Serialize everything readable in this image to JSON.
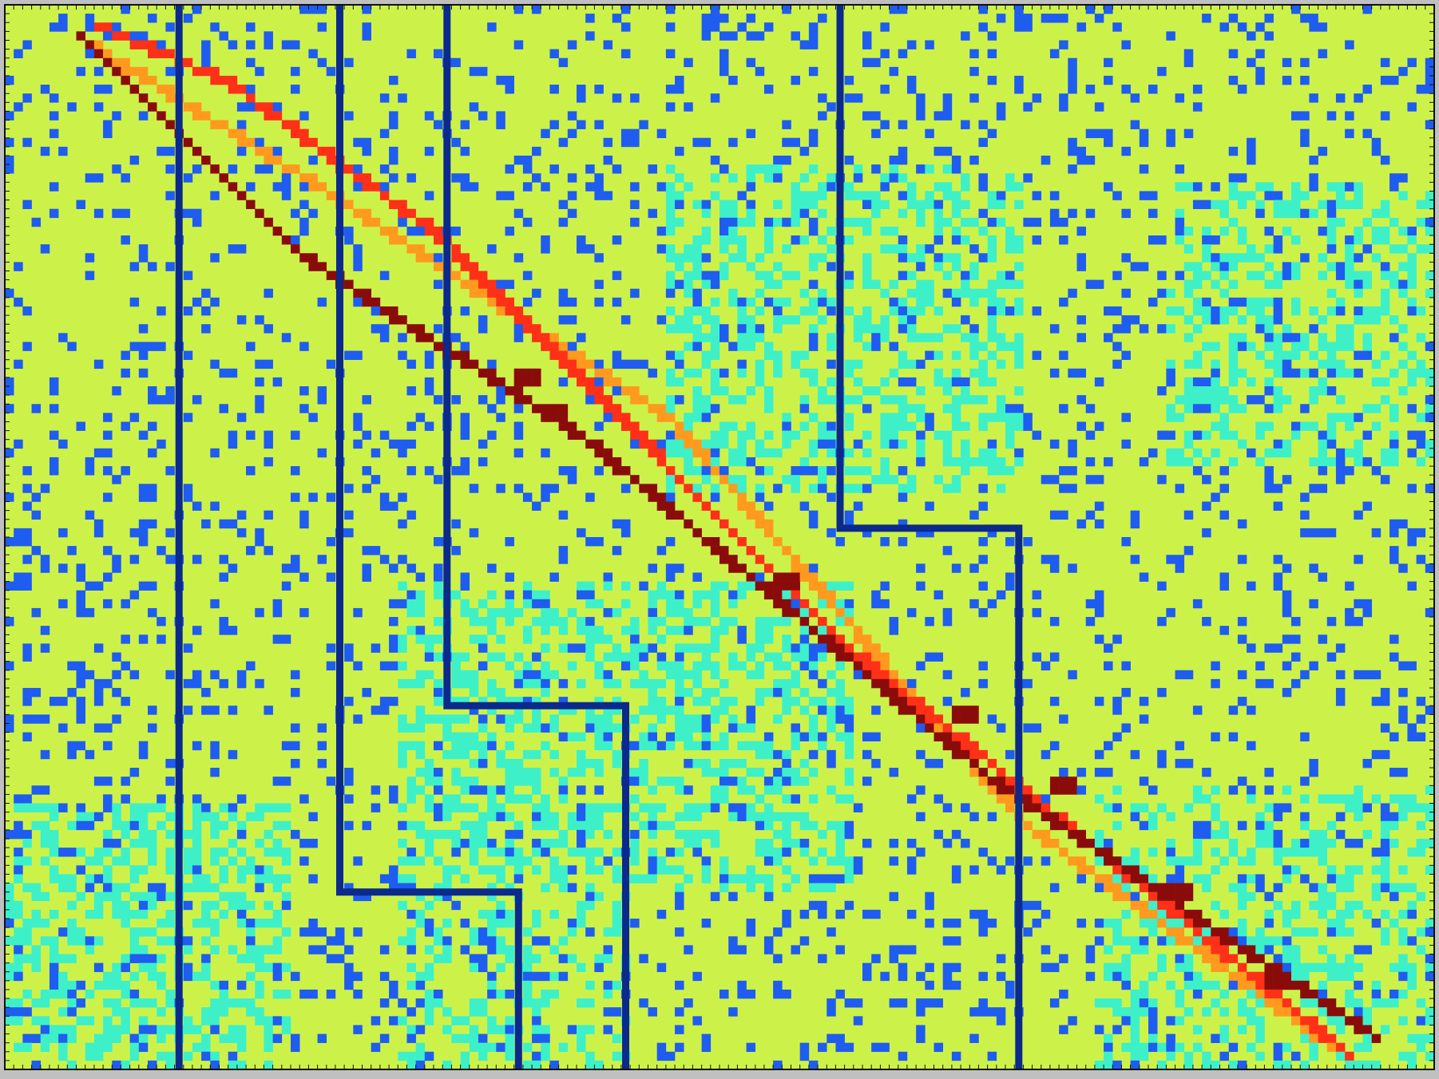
{
  "chart_data": {
    "type": "heatmap",
    "title": "",
    "xlabel": "",
    "ylabel": "",
    "grid": false,
    "tick_labels": "none",
    "n_cols": 160,
    "n_rows": 120,
    "colormap": "jet",
    "palette": {
      "background": "#ccf24a",
      "low": "#1f5cf0",
      "mid": "#3ef0c8",
      "high_orange": "#ff9a1e",
      "high_red": "#ff3018",
      "max": "#8a0c0a",
      "boundary": "#0b2a8c",
      "frame": "#111111"
    },
    "value_levels": {
      "low": 0.15,
      "background": 0.55,
      "mid": 0.35,
      "high_orange": 0.8,
      "high_red": 0.9,
      "max": 1.0
    },
    "diagonals": {
      "max_band": [
        [
          8,
          3
        ],
        [
          33,
          28
        ],
        [
          65,
          49
        ],
        [
          110,
          87
        ],
        [
          153,
          116
        ]
      ],
      "red_band": [
        [
          10,
          2
        ],
        [
          24,
          8
        ],
        [
          50,
          27
        ],
        [
          95,
          73
        ],
        [
          150,
          118
        ]
      ],
      "orange_band": [
        [
          9,
          4
        ],
        [
          36,
          21
        ],
        [
          75,
          47
        ],
        [
          115,
          93
        ],
        [
          148,
          117
        ]
      ]
    },
    "boundary_path_cols": [
      [
        [
          19,
          0
        ],
        [
          19,
          120
        ]
      ],
      [
        [
          37,
          0
        ],
        [
          37,
          100
        ],
        [
          57,
          100
        ],
        [
          57,
          120
        ]
      ],
      [
        [
          49,
          0
        ],
        [
          49,
          79
        ],
        [
          69,
          79
        ],
        [
          69,
          120
        ]
      ],
      [
        [
          93,
          0
        ],
        [
          93,
          59
        ],
        [
          113,
          59
        ],
        [
          113,
          120
        ]
      ]
    ],
    "cyan_regions": [
      {
        "cols": [
          74,
          114
        ],
        "rows": [
          18,
          55
        ],
        "density": 0.38
      },
      {
        "cols": [
          130,
          160
        ],
        "rows": [
          20,
          52
        ],
        "density": 0.34
      },
      {
        "cols": [
          44,
          95
        ],
        "rows": [
          65,
          100
        ],
        "density": 0.38
      },
      {
        "cols": [
          0,
          32
        ],
        "rows": [
          90,
          120
        ],
        "density": 0.42
      },
      {
        "cols": [
          44,
          70
        ],
        "rows": [
          100,
          120
        ],
        "density": 0.3
      },
      {
        "cols": [
          122,
          160
        ],
        "rows": [
          88,
          120
        ],
        "density": 0.3
      }
    ],
    "blue_density": 0.14
  }
}
